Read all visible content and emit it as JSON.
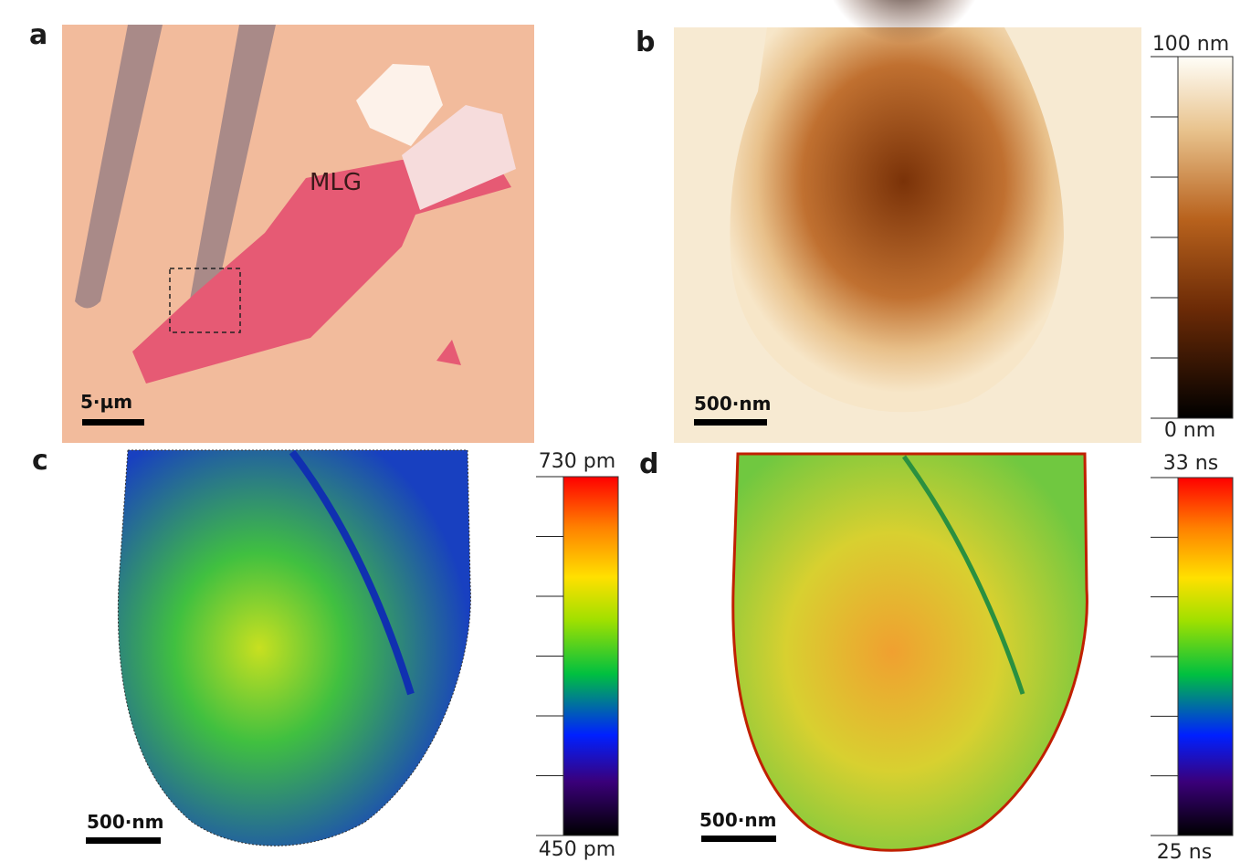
{
  "panels": [
    {
      "label": "a",
      "annotation": "MLG",
      "scale_bar": "5·µm"
    },
    {
      "label": "b",
      "scale_bar": "500·nm",
      "colorbar_max": "100 nm",
      "colorbar_min": "0 nm"
    },
    {
      "label": "c",
      "scale_bar": "500·nm",
      "colorbar_max": "730 pm",
      "colorbar_min": "450 pm"
    },
    {
      "label": "d",
      "scale_bar": "500·nm",
      "colorbar_max": "33 ns",
      "colorbar_min": "25 ns"
    }
  ]
}
